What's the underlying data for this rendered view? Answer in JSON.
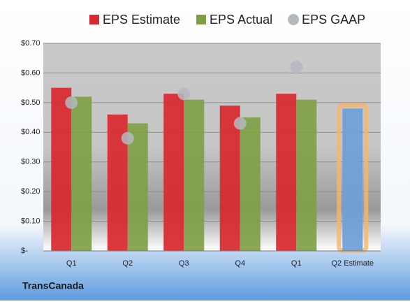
{
  "chart_data": {
    "type": "bar",
    "footer": "TransCanada",
    "categories": [
      "Q1",
      "Q2",
      "Q3",
      "Q4",
      "Q1",
      "Q2 Estimate"
    ],
    "series": [
      {
        "name": "EPS Estimate",
        "color": "#d9282f",
        "values": [
          0.55,
          0.46,
          0.53,
          0.49,
          0.53,
          0.48
        ]
      },
      {
        "name": "EPS Actual",
        "color": "#7f9f45",
        "values": [
          0.52,
          0.43,
          0.51,
          0.45,
          0.51,
          null
        ]
      },
      {
        "name": "EPS GAAP",
        "color": "#b4b9c0",
        "marker": "circle",
        "values": [
          0.5,
          0.38,
          0.53,
          0.43,
          0.62,
          null
        ]
      }
    ],
    "highlight": {
      "index": 5,
      "color": "#6f9fd8",
      "glow": "#f7b56a"
    },
    "ylim": [
      0,
      0.7
    ],
    "yticks": [
      {
        "value": 0,
        "label": "$-"
      },
      {
        "value": 0.1,
        "label": "$0.10"
      },
      {
        "value": 0.2,
        "label": "$0.20"
      },
      {
        "value": 0.3,
        "label": "$0.30"
      },
      {
        "value": 0.4,
        "label": "$0.40"
      },
      {
        "value": 0.5,
        "label": "$0.50"
      },
      {
        "value": 0.6,
        "label": "$0.60"
      },
      {
        "value": 0.7,
        "label": "$0.70"
      }
    ],
    "grid": true
  }
}
